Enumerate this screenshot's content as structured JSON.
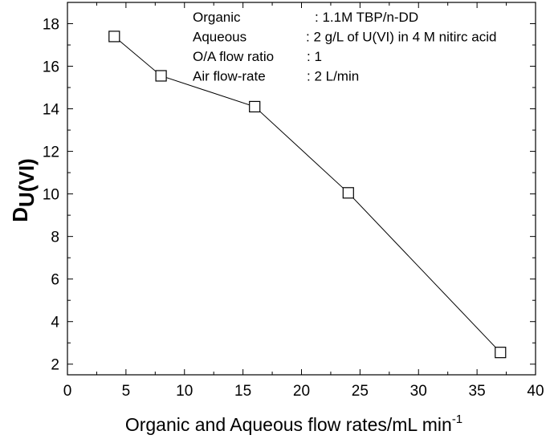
{
  "chart_data": {
    "type": "line",
    "title": "",
    "xlabel": "Organic and Aqueous flow rates/mL min",
    "xlabel_superscript": "-1",
    "ylabel_main": "D",
    "ylabel_subscript": "U(VI)",
    "xlim": [
      0,
      40
    ],
    "ylim": [
      1.5,
      19
    ],
    "xticks": [
      "0",
      "5",
      "10",
      "15",
      "20",
      "25",
      "30",
      "35",
      "40"
    ],
    "yticks": [
      "2",
      "4",
      "6",
      "8",
      "10",
      "12",
      "14",
      "16",
      "18"
    ],
    "grid": false,
    "marker": "open-square",
    "series": [
      {
        "x": [
          4,
          8,
          16,
          24,
          37
        ],
        "y": [
          17.4,
          15.55,
          14.1,
          10.05,
          2.55
        ]
      }
    ],
    "annotations": [
      {
        "label": "Organic",
        "value": ": 1.1M TBP/n-DD"
      },
      {
        "label": "Aqueous",
        "value": ": 2 g/L of U(VI) in 4 M nitirc acid"
      },
      {
        "label": "O/A flow ratio",
        "value": ": 1"
      },
      {
        "label": "Air flow-rate",
        "value": ": 2 L/min"
      }
    ]
  }
}
